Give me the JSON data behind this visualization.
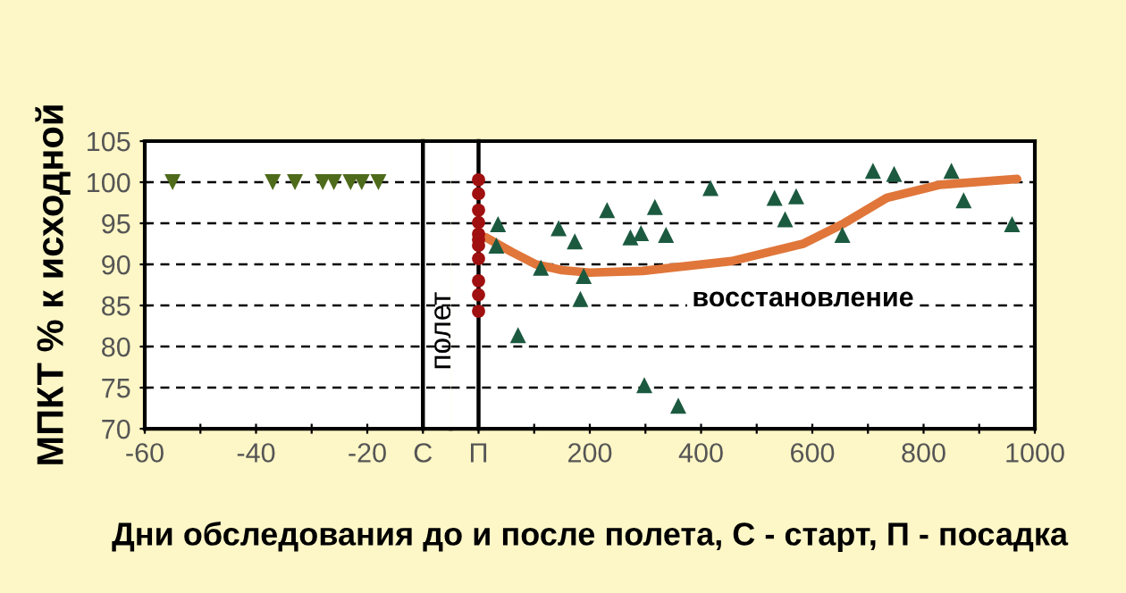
{
  "chart_data": [
    {
      "type": "scatter",
      "xlabel": "Дни обследования до и после полета, С - старт, П - посадка",
      "ylabel": "МПКТ % к исходной",
      "xlim": [
        -60,
        -5
      ],
      "xticks": [
        -60,
        {
          "value": -50,
          "label": null
        },
        -40,
        {
          "value": -30,
          "label": null
        },
        -20,
        {
          "value": -10,
          "label": "С"
        }
      ],
      "ylim": [
        70,
        105
      ],
      "yticks": [
        70,
        75,
        80,
        85,
        90,
        95,
        100,
        105
      ],
      "grid": "y",
      "ref_lines": [
        {
          "axis": "x",
          "value": -10,
          "label": null,
          "color": "#000000"
        }
      ],
      "annotations": [
        "полет"
      ],
      "series": [
        {
          "marker": "triangle_down",
          "color": "#4e6b1c",
          "x": [
            -55,
            -37,
            -33,
            -28,
            -26,
            -23,
            -21,
            -18
          ],
          "values": [
            100,
            100,
            100,
            100,
            100,
            100,
            100,
            100
          ]
        }
      ]
    },
    {
      "type": "scatter",
      "xlim": [
        -50,
        1000
      ],
      "xticks": [
        {
          "value": 0,
          "label": "П"
        },
        {
          "value": 100,
          "label": null
        },
        200,
        {
          "value": 300,
          "label": null
        },
        400,
        {
          "value": 500,
          "label": null
        },
        600,
        {
          "value": 700,
          "label": null
        },
        800,
        {
          "value": 900,
          "label": null
        },
        1000
      ],
      "ylim": [
        70,
        105
      ],
      "yticks": [
        70,
        75,
        80,
        85,
        90,
        95,
        100,
        105
      ],
      "tick_labels": "x",
      "grid": "y",
      "ref_lines": [
        {
          "axis": "x",
          "value": 0,
          "label": null,
          "color": "#000000"
        }
      ],
      "annotations": [
        "восстановление"
      ],
      "series": [
        {
          "type": "line",
          "marker": "none",
          "color": "#e0763a",
          "x": [
            13,
            60,
            103,
            150,
            200,
            295,
            455,
            583,
            657,
            734,
            830,
            968
          ],
          "values": [
            93.3,
            91.5,
            90.0,
            89.3,
            89.0,
            89.2,
            90.4,
            92.5,
            95.0,
            98.1,
            99.7,
            100.4
          ]
        },
        {
          "marker": "circle",
          "color": "#a01010",
          "x": [
            0,
            0,
            0,
            0,
            0,
            0,
            0,
            0,
            0,
            0,
            0
          ],
          "values": [
            100.3,
            98.6,
            96.6,
            95.1,
            93.7,
            93.0,
            92.3,
            90.7,
            88.0,
            86.3,
            84.3
          ]
        },
        {
          "marker": "triangle",
          "color": "#1c5a40",
          "x": [
            35,
            32,
            71,
            112,
            144,
            173,
            189,
            183,
            231,
            273,
            292,
            317,
            337,
            298,
            359,
            417,
            532,
            571,
            551,
            654,
            709,
            747,
            850,
            872,
            959
          ],
          "values": [
            94.9,
            92.3,
            81.4,
            89.6,
            94.4,
            92.8,
            88.6,
            85.8,
            96.6,
            93.3,
            93.8,
            97.0,
            93.6,
            75.3,
            72.8,
            99.3,
            98.1,
            98.3,
            95.5,
            93.6,
            101.4,
            101.0,
            101.4,
            97.8,
            94.9
          ]
        }
      ]
    }
  ]
}
